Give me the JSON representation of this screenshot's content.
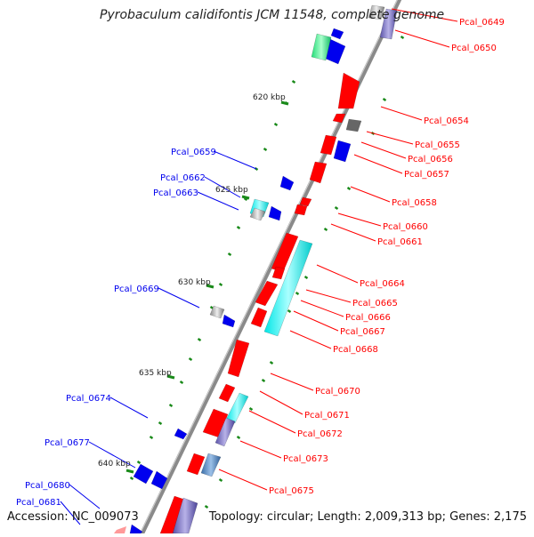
{
  "title": "Pyrobaculum calidifontis JCM 11548, complete genome",
  "accession_text": "Accession: NC_009073",
  "summary_text": "Topology: circular; Length: 2,009,313 bp; Genes: 2,175",
  "colors": {
    "forward": "#ff0000",
    "reverse": "#0000ee",
    "backbone": "#888888",
    "tick": "#1a8a1a"
  },
  "kbp_labels": [
    "620 kbp",
    "625 kbp",
    "630 kbp",
    "635 kbp",
    "640 kbp"
  ],
  "forward_labels": [
    "Pcal_0649",
    "Pcal_0650",
    "Pcal_0654",
    "Pcal_0655",
    "Pcal_0656",
    "Pcal_0657",
    "Pcal_0658",
    "Pcal_0660",
    "Pcal_0661",
    "Pcal_0664",
    "Pcal_0665",
    "Pcal_0666",
    "Pcal_0667",
    "Pcal_0668",
    "Pcal_0670",
    "Pcal_0671",
    "Pcal_0672",
    "Pcal_0673",
    "Pcal_0675"
  ],
  "reverse_labels": [
    "Pcal_0659",
    "Pcal_0662",
    "Pcal_0663",
    "Pcal_0669",
    "Pcal_0674",
    "Pcal_0677",
    "Pcal_0680",
    "Pcal_0681"
  ]
}
